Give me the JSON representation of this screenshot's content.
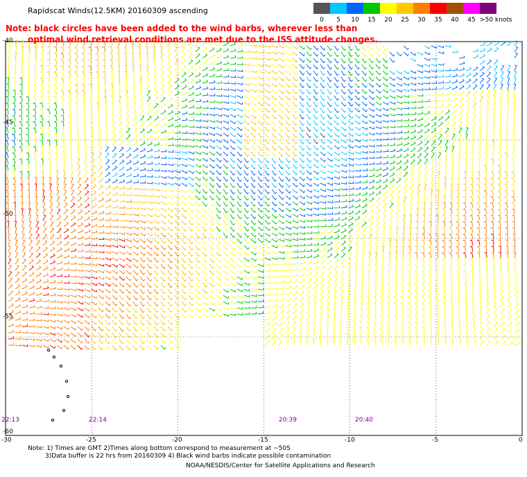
{
  "header": {
    "title": "Rapidscat Winds(12.5KM) 20160309 ascending",
    "note_line1": "Note: black circles have been added to the wind barbs, wherever less than",
    "note_line2": "optimal wind retrieval conditions are met due to the ISS attitude changes."
  },
  "colorbar": {
    "labels": [
      "0",
      "5",
      "10",
      "15",
      "20",
      "25",
      "30",
      "35",
      "40",
      "45",
      ">50 knots"
    ],
    "colors": [
      "#555555",
      "#00c8ff",
      "#0064ff",
      "#00c800",
      "#ffff00",
      "#ffc800",
      "#ff7f00",
      "#ff0000",
      "#a05000",
      "#ff00ff",
      "#800080"
    ]
  },
  "map": {
    "lon_ticks": [
      "-30",
      "-25",
      "-20",
      "-15",
      "-10",
      "-5",
      "0"
    ],
    "lat_ticks": [
      "-40",
      "-45",
      "-50",
      "-55",
      "-60"
    ],
    "lon_range": [
      -30,
      0
    ],
    "lat_range": [
      -60,
      -40
    ],
    "time_labels": [
      "22:13",
      "22:14",
      "20:39",
      "20:40"
    ]
  },
  "footer": {
    "line1": "Note: 1) Times are GMT 2)Times along bottom correspond to measurement at ~50S",
    "line2": "3)Data buffer is 22 hrs from 20160309 4) Black wind barbs indicate possible contamination",
    "line3": "NOAA/NESDIS/Center for Satellite Applications and Research"
  }
}
